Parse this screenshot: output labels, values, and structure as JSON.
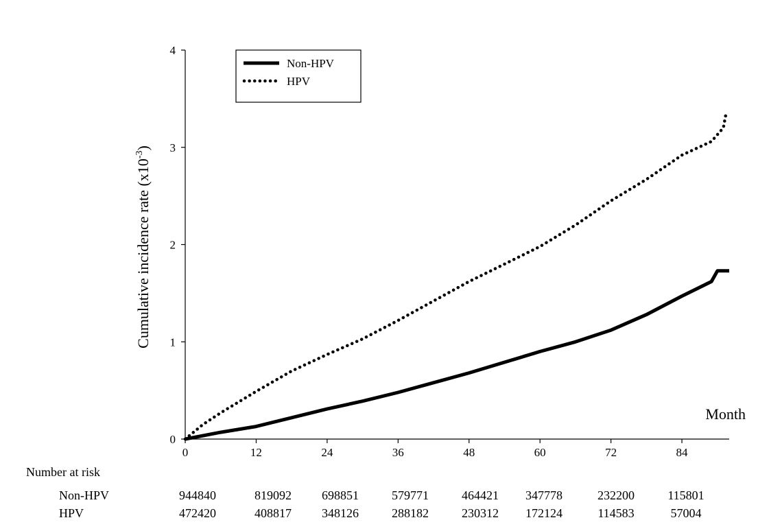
{
  "chart_data": {
    "type": "line",
    "ylabel_main": "Cumulative incidence rate (x10",
    "ylabel_exp": "-3",
    "ylabel_close": ")",
    "xlabel": "Month",
    "xlim": [
      0,
      92
    ],
    "ylim": [
      0,
      4
    ],
    "x_ticks": [
      "0",
      "12",
      "24",
      "36",
      "48",
      "60",
      "72",
      "84"
    ],
    "y_ticks": [
      "0",
      "1",
      "2",
      "3",
      "4"
    ],
    "grid": false,
    "legend_position": "top-left",
    "series": [
      {
        "name": "Non-HPV",
        "style": "solid",
        "color": "#000000",
        "x": [
          0,
          6,
          12,
          18,
          24,
          30,
          36,
          42,
          48,
          54,
          60,
          66,
          72,
          78,
          84,
          89,
          90,
          92
        ],
        "y": [
          0,
          0.07,
          0.13,
          0.22,
          0.31,
          0.39,
          0.48,
          0.58,
          0.68,
          0.79,
          0.9,
          1.0,
          1.12,
          1.28,
          1.47,
          1.62,
          1.73,
          1.73
        ]
      },
      {
        "name": "HPV",
        "style": "dotted",
        "color": "#000000",
        "x": [
          0,
          3,
          6,
          12,
          18,
          24,
          30,
          36,
          42,
          48,
          54,
          60,
          66,
          72,
          78,
          84,
          89,
          91,
          91.5
        ],
        "y": [
          0,
          0.15,
          0.27,
          0.49,
          0.7,
          0.87,
          1.03,
          1.22,
          1.42,
          1.62,
          1.8,
          1.98,
          2.2,
          2.45,
          2.67,
          2.92,
          3.06,
          3.2,
          3.36
        ]
      }
    ]
  },
  "risk_table": {
    "title": "Number at risk",
    "rows": [
      {
        "label": "Non-HPV",
        "values": [
          "944840",
          "819092",
          "698851",
          "579771",
          "464421",
          "347778",
          "232200",
          "115801"
        ]
      },
      {
        "label": "HPV",
        "values": [
          "472420",
          "408817",
          "348126",
          "288182",
          "230312",
          "172124",
          "114583",
          "57004"
        ]
      }
    ]
  }
}
